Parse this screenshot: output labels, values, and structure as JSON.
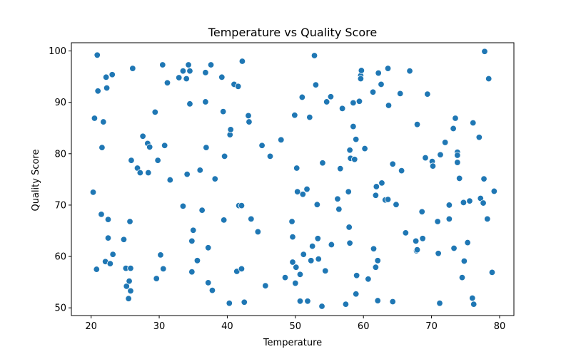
{
  "chart_data": {
    "type": "scatter",
    "title": "Temperature vs Quality Score",
    "xlabel": "Temperature",
    "ylabel": "Quality Score",
    "xlim": [
      17.1,
      82.1
    ],
    "ylim": [
      48.5,
      101.6
    ],
    "xticks": [
      20,
      30,
      40,
      50,
      60,
      70,
      80
    ],
    "yticks": [
      50,
      60,
      70,
      80,
      90,
      100
    ],
    "marker_color": "#1f77b4",
    "grid": false,
    "legend": "none",
    "points": [
      [
        20.3,
        72.5
      ],
      [
        20.5,
        86.9
      ],
      [
        20.8,
        57.5
      ],
      [
        20.9,
        99.2
      ],
      [
        21.0,
        92.2
      ],
      [
        21.5,
        68.2
      ],
      [
        21.6,
        81.2
      ],
      [
        21.8,
        86.2
      ],
      [
        22.1,
        59.0
      ],
      [
        22.2,
        94.9
      ],
      [
        22.3,
        92.8
      ],
      [
        22.5,
        63.6
      ],
      [
        22.5,
        67.2
      ],
      [
        22.8,
        58.6
      ],
      [
        23.1,
        95.4
      ],
      [
        23.2,
        60.4
      ],
      [
        24.8,
        63.3
      ],
      [
        25.1,
        57.7
      ],
      [
        25.2,
        54.2
      ],
      [
        25.5,
        51.8
      ],
      [
        25.6,
        55.2
      ],
      [
        25.7,
        66.8
      ],
      [
        25.8,
        53.3
      ],
      [
        25.8,
        57.7
      ],
      [
        25.9,
        78.7
      ],
      [
        26.1,
        96.6
      ],
      [
        26.8,
        77.2
      ],
      [
        27.2,
        76.3
      ],
      [
        27.6,
        83.4
      ],
      [
        28.3,
        82.0
      ],
      [
        28.4,
        76.3
      ],
      [
        28.6,
        81.3
      ],
      [
        29.4,
        88.1
      ],
      [
        29.6,
        55.7
      ],
      [
        29.8,
        78.7
      ],
      [
        30.2,
        60.3
      ],
      [
        30.5,
        97.3
      ],
      [
        30.6,
        57.6
      ],
      [
        30.8,
        81.6
      ],
      [
        31.2,
        93.8
      ],
      [
        31.6,
        74.9
      ],
      [
        32.9,
        94.8
      ],
      [
        33.5,
        96.1
      ],
      [
        33.5,
        69.8
      ],
      [
        34.0,
        94.6
      ],
      [
        34.1,
        76.0
      ],
      [
        34.3,
        97.3
      ],
      [
        34.5,
        89.7
      ],
      [
        34.5,
        96.1
      ],
      [
        34.8,
        63.0
      ],
      [
        34.8,
        57.0
      ],
      [
        35.0,
        65.1
      ],
      [
        35.6,
        59.2
      ],
      [
        36.0,
        76.8
      ],
      [
        36.3,
        69.0
      ],
      [
        36.8,
        95.8
      ],
      [
        36.8,
        90.1
      ],
      [
        36.9,
        81.2
      ],
      [
        37.2,
        61.7
      ],
      [
        37.2,
        54.9
      ],
      [
        37.6,
        97.3
      ],
      [
        37.8,
        53.4
      ],
      [
        38.2,
        75.1
      ],
      [
        39.2,
        94.9
      ],
      [
        39.4,
        88.2
      ],
      [
        39.5,
        67.1
      ],
      [
        39.6,
        79.5
      ],
      [
        40.3,
        50.9
      ],
      [
        40.4,
        83.7
      ],
      [
        40.5,
        84.7
      ],
      [
        41.0,
        93.5
      ],
      [
        41.4,
        57.1
      ],
      [
        41.6,
        93.1
      ],
      [
        41.7,
        69.9
      ],
      [
        42.1,
        69.9
      ],
      [
        42.1,
        57.6
      ],
      [
        42.2,
        98.0
      ],
      [
        42.5,
        51.1
      ],
      [
        43.1,
        87.4
      ],
      [
        43.2,
        86.2
      ],
      [
        43.5,
        67.3
      ],
      [
        44.5,
        64.8
      ],
      [
        45.1,
        81.6
      ],
      [
        45.6,
        54.3
      ],
      [
        46.3,
        79.5
      ],
      [
        47.9,
        82.7
      ],
      [
        48.5,
        55.9
      ],
      [
        49.5,
        66.8
      ],
      [
        49.6,
        63.8
      ],
      [
        49.6,
        58.9
      ],
      [
        49.9,
        87.5
      ],
      [
        50.0,
        54.8
      ],
      [
        50.1,
        57.9
      ],
      [
        50.2,
        77.2
      ],
      [
        50.3,
        72.6
      ],
      [
        50.7,
        51.3
      ],
      [
        50.7,
        56.5
      ],
      [
        51.0,
        91.0
      ],
      [
        51.1,
        72.1
      ],
      [
        51.2,
        60.4
      ],
      [
        51.7,
        73.1
      ],
      [
        51.8,
        51.3
      ],
      [
        52.1,
        87.1
      ],
      [
        52.3,
        59.2
      ],
      [
        52.5,
        62.0
      ],
      [
        52.8,
        99.1
      ],
      [
        53.0,
        93.4
      ],
      [
        53.2,
        70.1
      ],
      [
        53.3,
        63.5
      ],
      [
        53.4,
        59.5
      ],
      [
        53.9,
        50.3
      ],
      [
        54.0,
        78.2
      ],
      [
        54.4,
        57.2
      ],
      [
        54.6,
        90.1
      ],
      [
        55.2,
        91.1
      ],
      [
        55.3,
        62.3
      ],
      [
        56.2,
        71.2
      ],
      [
        56.4,
        69.2
      ],
      [
        56.6,
        77.1
      ],
      [
        56.9,
        88.8
      ],
      [
        57.4,
        50.7
      ],
      [
        57.8,
        72.6
      ],
      [
        57.9,
        65.7
      ],
      [
        58.0,
        62.6
      ],
      [
        58.0,
        80.7
      ],
      [
        58.1,
        79.1
      ],
      [
        58.5,
        85.3
      ],
      [
        58.5,
        89.9
      ],
      [
        58.7,
        78.9
      ],
      [
        58.9,
        52.7
      ],
      [
        58.9,
        82.8
      ],
      [
        59.0,
        56.3
      ],
      [
        59.4,
        90.2
      ],
      [
        59.6,
        95.2
      ],
      [
        59.6,
        94.6
      ],
      [
        59.7,
        96.2
      ],
      [
        60.2,
        81.0
      ],
      [
        60.7,
        55.6
      ],
      [
        61.4,
        92.0
      ],
      [
        61.5,
        61.5
      ],
      [
        61.8,
        57.9
      ],
      [
        61.8,
        71.9
      ],
      [
        61.9,
        73.6
      ],
      [
        62.1,
        59.2
      ],
      [
        62.1,
        51.4
      ],
      [
        62.2,
        95.7
      ],
      [
        62.6,
        93.5
      ],
      [
        62.7,
        74.3
      ],
      [
        63.2,
        71.0
      ],
      [
        63.6,
        71.1
      ],
      [
        63.6,
        96.6
      ],
      [
        63.7,
        89.4
      ],
      [
        64.3,
        51.2
      ],
      [
        64.3,
        78.0
      ],
      [
        64.8,
        70.1
      ],
      [
        65.4,
        91.7
      ],
      [
        65.6,
        76.7
      ],
      [
        66.2,
        64.6
      ],
      [
        66.8,
        96.1
      ],
      [
        67.7,
        63.0
      ],
      [
        67.8,
        61.1
      ],
      [
        67.9,
        61.3
      ],
      [
        67.9,
        85.7
      ],
      [
        68.6,
        68.7
      ],
      [
        68.7,
        63.5
      ],
      [
        69.1,
        79.2
      ],
      [
        69.4,
        91.6
      ],
      [
        70.1,
        78.5
      ],
      [
        70.2,
        77.6
      ],
      [
        70.9,
        66.8
      ],
      [
        71.0,
        60.6
      ],
      [
        71.2,
        50.9
      ],
      [
        71.3,
        79.8
      ],
      [
        72.0,
        82.2
      ],
      [
        72.6,
        67.3
      ],
      [
        72.6,
        70.0
      ],
      [
        73.2,
        84.9
      ],
      [
        73.3,
        61.6
      ],
      [
        73.5,
        86.9
      ],
      [
        73.8,
        80.3
      ],
      [
        73.8,
        79.7
      ],
      [
        73.8,
        78.3
      ],
      [
        74.1,
        75.2
      ],
      [
        74.5,
        55.9
      ],
      [
        74.7,
        70.5
      ],
      [
        74.8,
        59.1
      ],
      [
        75.3,
        62.7
      ],
      [
        75.6,
        70.8
      ],
      [
        76.0,
        51.9
      ],
      [
        76.1,
        86.0
      ],
      [
        76.2,
        50.7
      ],
      [
        77.0,
        83.2
      ],
      [
        77.2,
        71.3
      ],
      [
        77.6,
        70.4
      ],
      [
        77.7,
        75.1
      ],
      [
        77.8,
        99.9
      ],
      [
        78.2,
        67.3
      ],
      [
        78.4,
        94.6
      ],
      [
        78.9,
        56.9
      ],
      [
        79.2,
        72.7
      ]
    ]
  }
}
